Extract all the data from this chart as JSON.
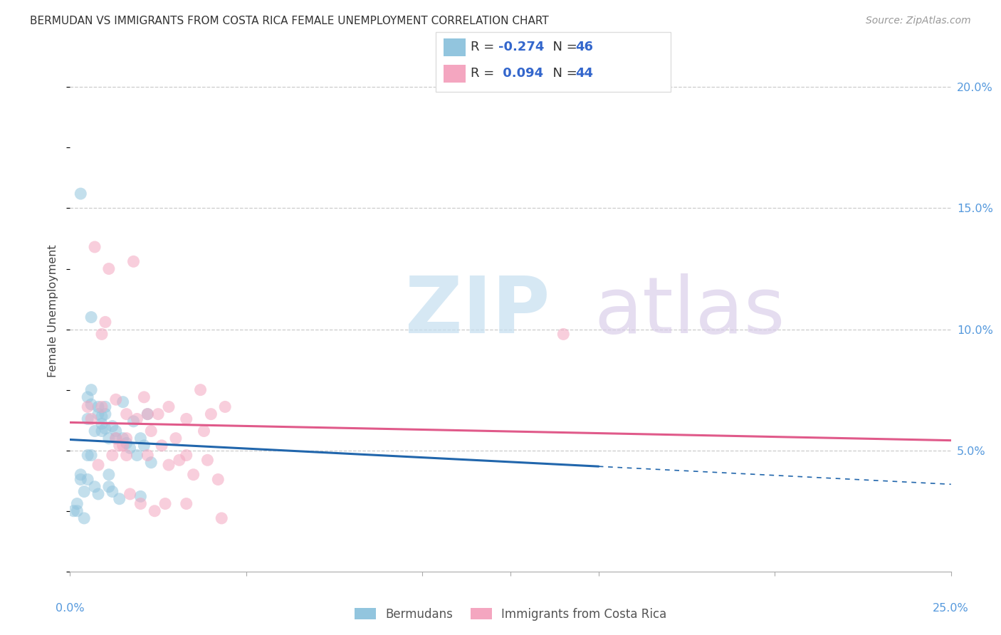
{
  "title": "BERMUDAN VS IMMIGRANTS FROM COSTA RICA FEMALE UNEMPLOYMENT CORRELATION CHART",
  "source": "Source: ZipAtlas.com",
  "ylabel": "Female Unemployment",
  "ytick_labels": [
    "20.0%",
    "15.0%",
    "10.0%",
    "5.0%"
  ],
  "ytick_values": [
    0.2,
    0.15,
    0.1,
    0.05
  ],
  "xlim": [
    0.0,
    0.25
  ],
  "ylim": [
    0.0,
    0.215
  ],
  "legend_r_blue": "-0.274",
  "legend_n_blue": "46",
  "legend_r_pink": "0.094",
  "legend_n_pink": "44",
  "legend_label_blue": "Bermudans",
  "legend_label_pink": "Immigrants from Costa Rica",
  "blue_color": "#92c5de",
  "pink_color": "#f4a6c0",
  "blue_line_color": "#2166ac",
  "pink_line_color": "#e05a8a",
  "blue_scatter_x": [
    0.001,
    0.002,
    0.003,
    0.003,
    0.004,
    0.005,
    0.005,
    0.005,
    0.006,
    0.006,
    0.006,
    0.007,
    0.007,
    0.008,
    0.008,
    0.009,
    0.009,
    0.009,
    0.01,
    0.01,
    0.01,
    0.011,
    0.011,
    0.012,
    0.012,
    0.013,
    0.013,
    0.014,
    0.015,
    0.015,
    0.016,
    0.017,
    0.018,
    0.019,
    0.02,
    0.02,
    0.021,
    0.022,
    0.023,
    0.003,
    0.005,
    0.006,
    0.008,
    0.011,
    0.002,
    0.004
  ],
  "blue_scatter_y": [
    0.025,
    0.028,
    0.04,
    0.038,
    0.022,
    0.063,
    0.038,
    0.072,
    0.069,
    0.075,
    0.048,
    0.058,
    0.035,
    0.065,
    0.068,
    0.061,
    0.064,
    0.058,
    0.068,
    0.065,
    0.059,
    0.055,
    0.04,
    0.06,
    0.033,
    0.055,
    0.058,
    0.03,
    0.07,
    0.055,
    0.053,
    0.051,
    0.062,
    0.048,
    0.055,
    0.031,
    0.052,
    0.065,
    0.045,
    0.156,
    0.048,
    0.105,
    0.032,
    0.035,
    0.025,
    0.033
  ],
  "pink_scatter_x": [
    0.005,
    0.006,
    0.007,
    0.008,
    0.009,
    0.009,
    0.01,
    0.011,
    0.012,
    0.013,
    0.013,
    0.014,
    0.015,
    0.016,
    0.016,
    0.016,
    0.017,
    0.018,
    0.019,
    0.02,
    0.021,
    0.022,
    0.022,
    0.023,
    0.024,
    0.025,
    0.026,
    0.027,
    0.028,
    0.028,
    0.03,
    0.031,
    0.033,
    0.033,
    0.035,
    0.037,
    0.038,
    0.039,
    0.04,
    0.042,
    0.043,
    0.044,
    0.14,
    0.033
  ],
  "pink_scatter_y": [
    0.068,
    0.063,
    0.134,
    0.044,
    0.098,
    0.068,
    0.103,
    0.125,
    0.048,
    0.071,
    0.055,
    0.052,
    0.052,
    0.065,
    0.055,
    0.048,
    0.032,
    0.128,
    0.063,
    0.028,
    0.072,
    0.065,
    0.048,
    0.058,
    0.025,
    0.065,
    0.052,
    0.028,
    0.068,
    0.044,
    0.055,
    0.046,
    0.048,
    0.063,
    0.04,
    0.075,
    0.058,
    0.046,
    0.065,
    0.038,
    0.022,
    0.068,
    0.098,
    0.028
  ]
}
